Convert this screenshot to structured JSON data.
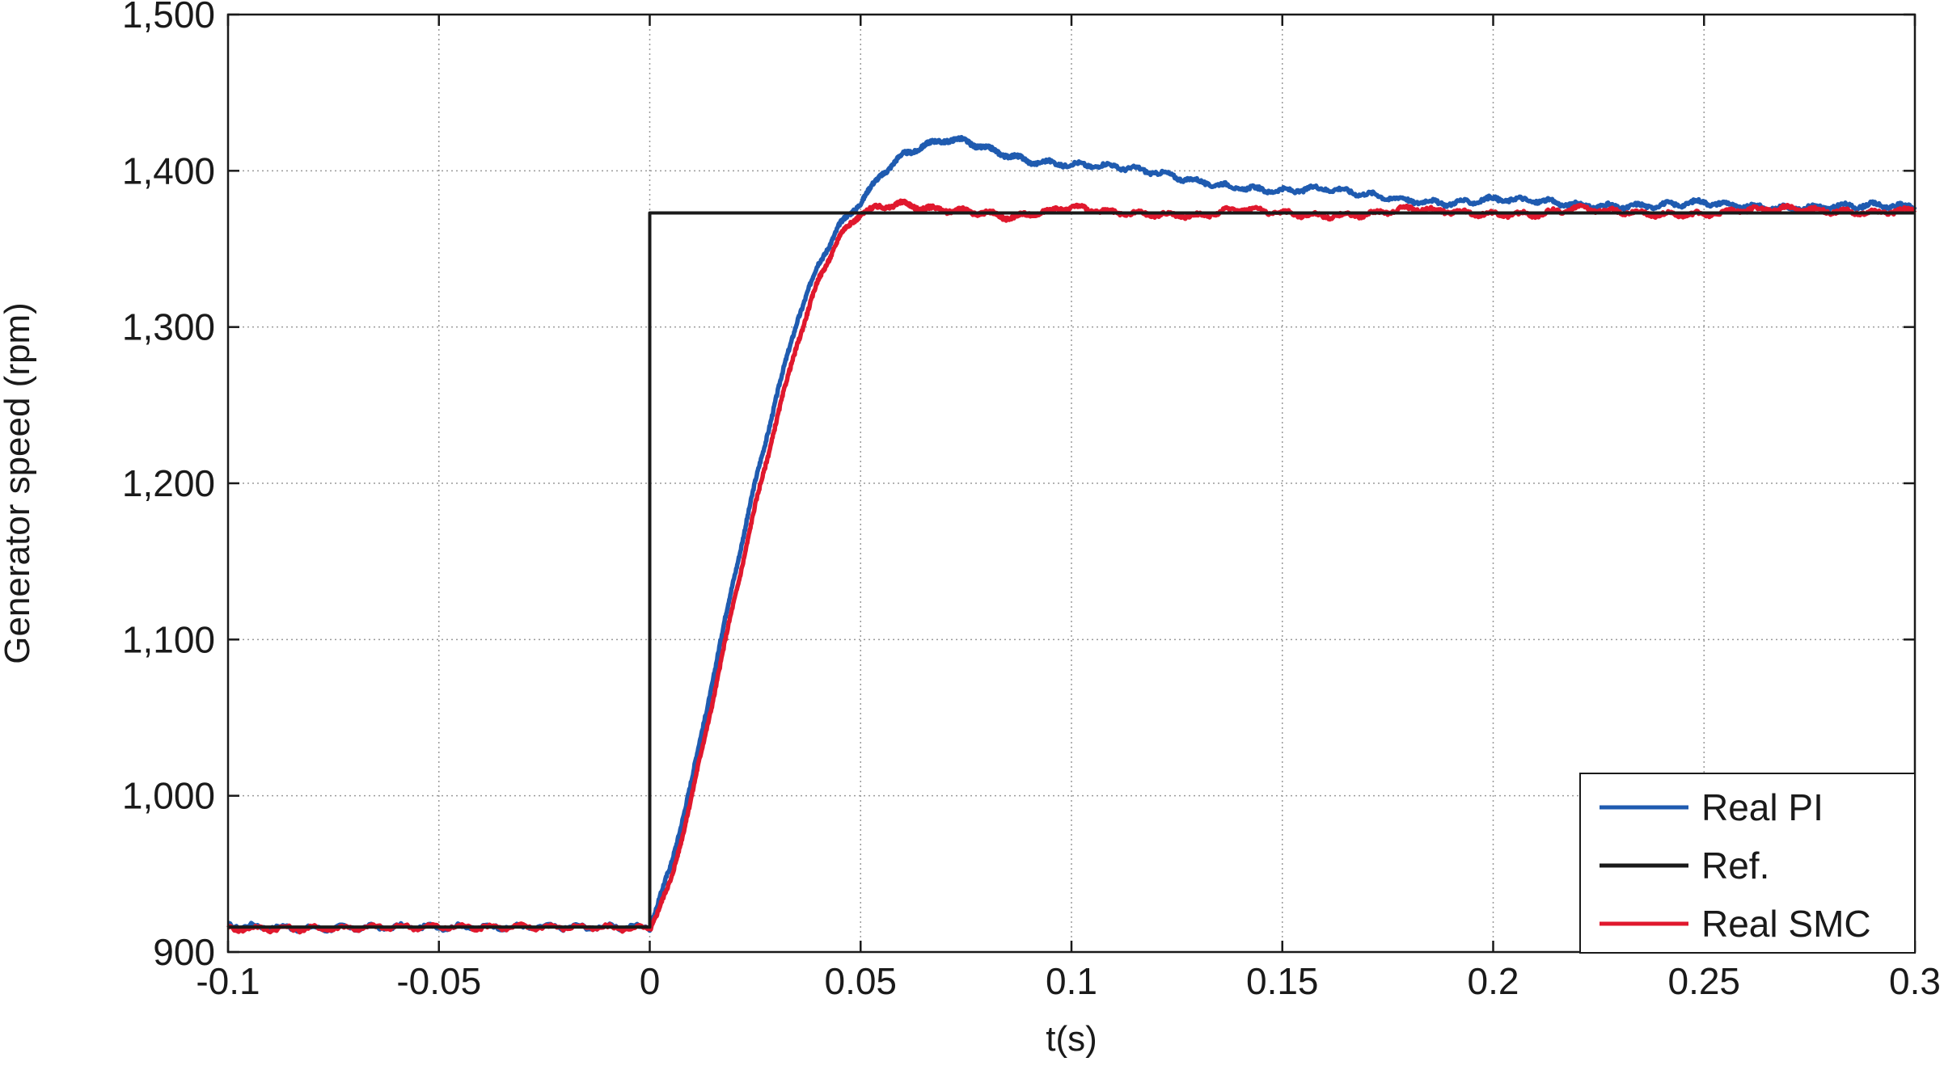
{
  "chart_data": {
    "type": "line",
    "xlabel": "t(s)",
    "ylabel": "Generator speed (rpm)",
    "xlim": [
      -0.1,
      0.3
    ],
    "ylim": [
      900,
      1500
    ],
    "x_ticks": [
      -0.1,
      -0.05,
      0,
      0.05,
      0.1,
      0.15,
      0.2,
      0.25,
      0.3
    ],
    "x_tick_labels": [
      "-0.1",
      "-0.05",
      "0",
      "0.05",
      "0.1",
      "0.15",
      "0.2",
      "0.25",
      "0.3"
    ],
    "y_ticks": [
      900,
      1000,
      1100,
      1200,
      1300,
      1400,
      1500
    ],
    "y_tick_labels": [
      "900",
      "1,000",
      "1,100",
      "1,200",
      "1,300",
      "1,400",
      "1,500"
    ],
    "grid": true,
    "legend_position": "bottom-right",
    "series": [
      {
        "name": "Real PI",
        "color": "#1f5bb0",
        "x": [
          -0.1,
          -0.08,
          -0.06,
          -0.04,
          -0.02,
          0,
          0.005,
          0.01,
          0.015,
          0.02,
          0.025,
          0.03,
          0.035,
          0.04,
          0.045,
          0.05,
          0.055,
          0.06,
          0.065,
          0.07,
          0.075,
          0.08,
          0.085,
          0.09,
          0.1,
          0.11,
          0.12,
          0.13,
          0.14,
          0.15,
          0.16,
          0.17,
          0.18,
          0.19,
          0.2,
          0.21,
          0.22,
          0.23,
          0.24,
          0.25,
          0.26,
          0.27,
          0.28,
          0.29,
          0.3
        ],
        "y": [
          917,
          915,
          916,
          916,
          916,
          916,
          955,
          1010,
          1075,
          1140,
          1200,
          1255,
          1305,
          1340,
          1365,
          1380,
          1398,
          1410,
          1416,
          1420,
          1419,
          1414,
          1410,
          1406,
          1404,
          1403,
          1399,
          1393,
          1389,
          1387,
          1389,
          1385,
          1381,
          1379,
          1382,
          1381,
          1378,
          1377,
          1378,
          1380,
          1377,
          1376,
          1377,
          1378,
          1377
        ]
      },
      {
        "name": "Ref.",
        "color": "#1a1a1a",
        "x": [
          -0.1,
          0,
          0,
          0.3
        ],
        "y": [
          916,
          916,
          1373,
          1373
        ]
      },
      {
        "name": "Real SMC",
        "color": "#e0182d",
        "x": [
          -0.1,
          -0.08,
          -0.06,
          -0.04,
          -0.02,
          0,
          0.005,
          0.01,
          0.015,
          0.02,
          0.025,
          0.03,
          0.035,
          0.04,
          0.045,
          0.05,
          0.055,
          0.06,
          0.065,
          0.07,
          0.075,
          0.08,
          0.085,
          0.09,
          0.1,
          0.11,
          0.12,
          0.13,
          0.14,
          0.15,
          0.16,
          0.17,
          0.18,
          0.19,
          0.2,
          0.21,
          0.22,
          0.23,
          0.24,
          0.25,
          0.26,
          0.27,
          0.28,
          0.29,
          0.3
        ],
        "y": [
          915,
          915,
          916,
          916,
          916,
          915,
          945,
          1000,
          1062,
          1125,
          1185,
          1240,
          1290,
          1330,
          1358,
          1373,
          1377,
          1379,
          1376,
          1375,
          1374,
          1373,
          1370,
          1372,
          1377,
          1373,
          1372,
          1371,
          1376,
          1373,
          1371,
          1372,
          1376,
          1374,
          1372,
          1372,
          1376,
          1374,
          1372,
          1372,
          1375,
          1376,
          1374,
          1373,
          1375
        ]
      }
    ]
  }
}
